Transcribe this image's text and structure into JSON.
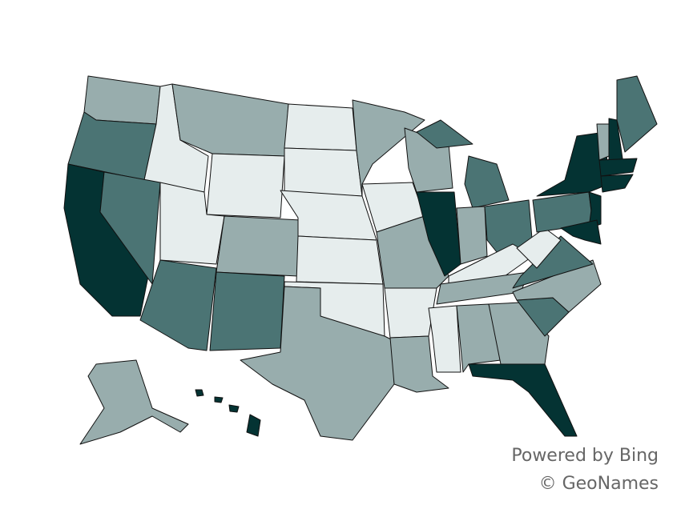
{
  "map": {
    "attribution": [
      "Powered by Bing",
      "© GeoNames"
    ],
    "colors": [
      "#e6eded",
      "#98adad",
      "#4b7474",
      "#043333"
    ],
    "border_color": "#111111"
  }
}
